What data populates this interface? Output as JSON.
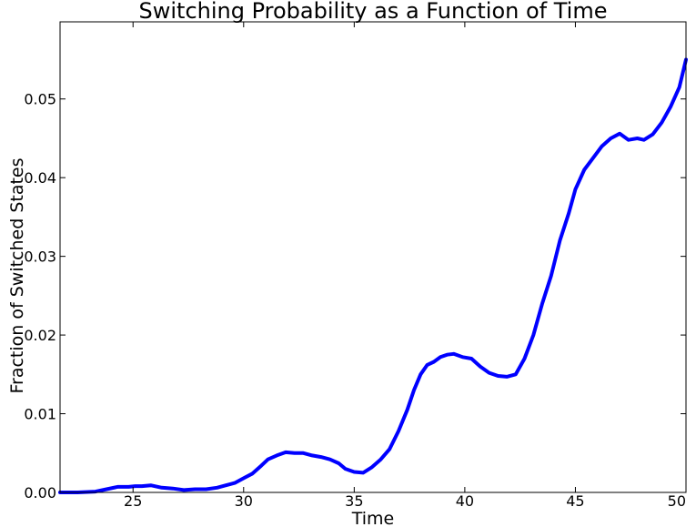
{
  "chart_data": {
    "type": "line",
    "title": "Switching Probability as a Function of Time",
    "xlabel": "Time",
    "ylabel": "Fraction of Switched States",
    "xlim": [
      21.7,
      50
    ],
    "ylim": [
      0,
      0.0598
    ],
    "xticks": [
      25,
      30,
      35,
      40,
      45,
      50
    ],
    "yticks": [
      0.0,
      0.01,
      0.02,
      0.03,
      0.04,
      0.05
    ],
    "ytick_labels": [
      "0.00",
      "0.01",
      "0.02",
      "0.03",
      "0.04",
      "0.05"
    ],
    "grid": false,
    "series": [
      {
        "color": "#0000ff",
        "x": [
          21.7,
          22.5,
          23.3,
          23.8,
          24.3,
          24.8,
          25.1,
          25.4,
          25.8,
          26.3,
          26.8,
          27.3,
          27.8,
          28.3,
          28.8,
          29.2,
          29.6,
          30.0,
          30.4,
          30.8,
          31.1,
          31.5,
          31.9,
          32.3,
          32.7,
          33.1,
          33.5,
          33.9,
          34.3,
          34.6,
          35.0,
          35.4,
          35.8,
          36.2,
          36.6,
          37.0,
          37.4,
          37.7,
          38.0,
          38.3,
          38.6,
          38.9,
          39.2,
          39.5,
          39.9,
          40.3,
          40.7,
          41.1,
          41.5,
          41.9,
          42.3,
          42.7,
          43.1,
          43.5,
          43.9,
          44.3,
          44.7,
          45.0,
          45.4,
          45.8,
          46.2,
          46.6,
          47.0,
          47.4,
          47.8,
          48.1,
          48.5,
          48.9,
          49.3,
          49.7,
          50.0
        ],
        "y": [
          0.0,
          0.0,
          0.0001,
          0.0004,
          0.0007,
          0.0007,
          0.0008,
          0.0008,
          0.0009,
          0.0006,
          0.0005,
          0.0003,
          0.0004,
          0.0004,
          0.0006,
          0.0009,
          0.0012,
          0.0018,
          0.0024,
          0.0034,
          0.0042,
          0.0047,
          0.0051,
          0.005,
          0.005,
          0.0047,
          0.0045,
          0.0042,
          0.0037,
          0.003,
          0.0026,
          0.0025,
          0.0032,
          0.0042,
          0.0055,
          0.0078,
          0.0105,
          0.013,
          0.015,
          0.0162,
          0.0166,
          0.0172,
          0.0175,
          0.0176,
          0.0172,
          0.017,
          0.016,
          0.0152,
          0.0148,
          0.0147,
          0.015,
          0.017,
          0.02,
          0.024,
          0.0275,
          0.032,
          0.0355,
          0.0385,
          0.041,
          0.0425,
          0.044,
          0.045,
          0.0456,
          0.0448,
          0.045,
          0.0448,
          0.0455,
          0.047,
          0.049,
          0.0515,
          0.055
        ]
      }
    ]
  }
}
